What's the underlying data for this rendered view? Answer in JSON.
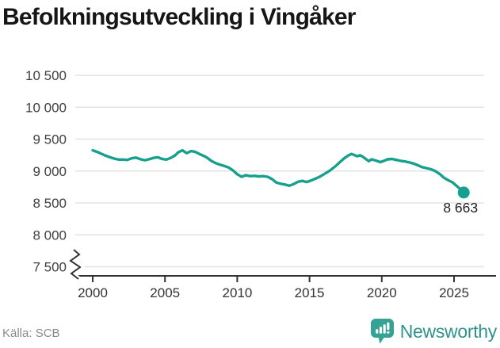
{
  "header": {
    "title": "Befolkningsutveckling i Vingåker"
  },
  "chart_data": {
    "type": "line",
    "title": "Befolkningsutveckling i Vingåker",
    "xlabel": "",
    "ylabel": "",
    "ylim": [
      7500,
      10500
    ],
    "grid": "horizontal",
    "axis_break": true,
    "line_color": "#18a08f",
    "grid_color": "#e3e3e3",
    "axis_color": "#333333",
    "y_ticks": {
      "values": [
        10500,
        10000,
        9500,
        9000,
        8500,
        8000,
        7500
      ],
      "labels": [
        "10 500",
        "10 000",
        "9 500",
        "9 000",
        "8 500",
        "8 000",
        "7 500"
      ]
    },
    "x_ticks": {
      "values": [
        2000,
        2005,
        2010,
        2015,
        2020,
        2025
      ],
      "labels": [
        "2000",
        "2005",
        "2010",
        "2015",
        "2020",
        "2025"
      ]
    },
    "end_label": "8 663",
    "end_value": 8663,
    "series": [
      {
        "name": "Befolkning i Vingåker",
        "points": [
          [
            2000.0,
            9325
          ],
          [
            2000.3,
            9300
          ],
          [
            2000.6,
            9270
          ],
          [
            2000.9,
            9240
          ],
          [
            2001.2,
            9215
          ],
          [
            2001.5,
            9195
          ],
          [
            2001.8,
            9180
          ],
          [
            2002.1,
            9180
          ],
          [
            2002.4,
            9175
          ],
          [
            2002.7,
            9200
          ],
          [
            2003.0,
            9210
          ],
          [
            2003.3,
            9185
          ],
          [
            2003.6,
            9170
          ],
          [
            2003.9,
            9185
          ],
          [
            2004.2,
            9205
          ],
          [
            2004.5,
            9215
          ],
          [
            2004.8,
            9190
          ],
          [
            2005.1,
            9180
          ],
          [
            2005.4,
            9205
          ],
          [
            2005.7,
            9245
          ],
          [
            2005.9,
            9290
          ],
          [
            2006.2,
            9325
          ],
          [
            2006.5,
            9280
          ],
          [
            2006.8,
            9313
          ],
          [
            2007.1,
            9300
          ],
          [
            2007.4,
            9265
          ],
          [
            2007.7,
            9235
          ],
          [
            2007.9,
            9210
          ],
          [
            2008.2,
            9160
          ],
          [
            2008.5,
            9125
          ],
          [
            2008.8,
            9100
          ],
          [
            2009.1,
            9080
          ],
          [
            2009.4,
            9055
          ],
          [
            2009.7,
            9010
          ],
          [
            2010.0,
            8950
          ],
          [
            2010.3,
            8910
          ],
          [
            2010.6,
            8935
          ],
          [
            2010.9,
            8920
          ],
          [
            2011.2,
            8925
          ],
          [
            2011.5,
            8915
          ],
          [
            2011.8,
            8920
          ],
          [
            2012.1,
            8910
          ],
          [
            2012.4,
            8875
          ],
          [
            2012.7,
            8820
          ],
          [
            2013.0,
            8800
          ],
          [
            2013.3,
            8788
          ],
          [
            2013.6,
            8770
          ],
          [
            2013.9,
            8795
          ],
          [
            2014.2,
            8830
          ],
          [
            2014.5,
            8845
          ],
          [
            2014.8,
            8828
          ],
          [
            2015.1,
            8850
          ],
          [
            2015.4,
            8880
          ],
          [
            2015.7,
            8910
          ],
          [
            2016.0,
            8950
          ],
          [
            2016.4,
            9005
          ],
          [
            2016.8,
            9075
          ],
          [
            2017.1,
            9140
          ],
          [
            2017.4,
            9200
          ],
          [
            2017.7,
            9245
          ],
          [
            2017.9,
            9268
          ],
          [
            2018.1,
            9250
          ],
          [
            2018.3,
            9232
          ],
          [
            2018.5,
            9248
          ],
          [
            2018.7,
            9222
          ],
          [
            2018.9,
            9188
          ],
          [
            2019.1,
            9155
          ],
          [
            2019.3,
            9183
          ],
          [
            2019.6,
            9163
          ],
          [
            2019.9,
            9140
          ],
          [
            2020.1,
            9155
          ],
          [
            2020.4,
            9183
          ],
          [
            2020.7,
            9190
          ],
          [
            2021.0,
            9175
          ],
          [
            2021.3,
            9160
          ],
          [
            2021.6,
            9150
          ],
          [
            2021.9,
            9135
          ],
          [
            2022.2,
            9118
          ],
          [
            2022.5,
            9090
          ],
          [
            2022.8,
            9060
          ],
          [
            2023.1,
            9045
          ],
          [
            2023.4,
            9028
          ],
          [
            2023.7,
            9000
          ],
          [
            2024.0,
            8955
          ],
          [
            2024.3,
            8895
          ],
          [
            2024.6,
            8855
          ],
          [
            2024.9,
            8822
          ],
          [
            2025.1,
            8782
          ],
          [
            2025.3,
            8742
          ],
          [
            2025.5,
            8700
          ],
          [
            2025.67,
            8663
          ]
        ]
      }
    ]
  },
  "footer": {
    "source": "Källa: SCB",
    "brand": "Newsworthy",
    "brand_icon": "newsworthy-speech-bubble-bars-icon",
    "brand_color": "#2f948e",
    "icon_color": "#35a294"
  }
}
